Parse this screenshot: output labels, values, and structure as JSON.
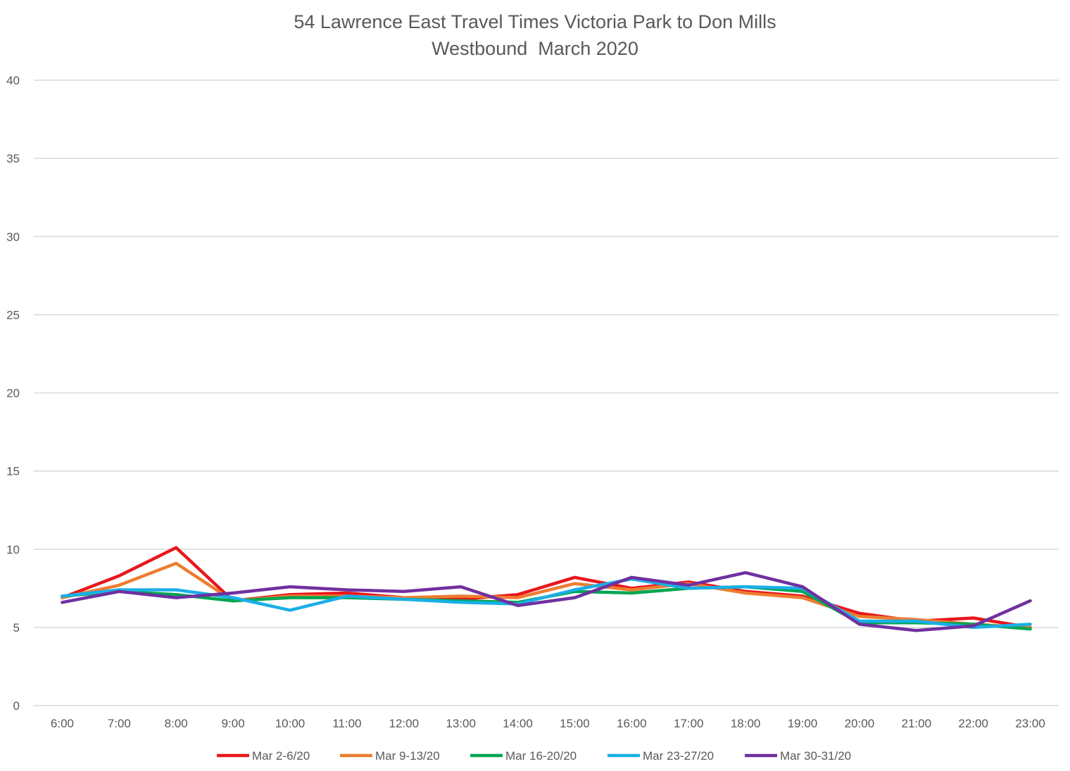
{
  "chart_data": {
    "type": "line",
    "title": [
      "54 Lawrence East Travel Times Victoria Park to Don Mills",
      "Westbound  March 2020"
    ],
    "xlabel": "",
    "ylabel": "",
    "ylim": [
      0,
      40
    ],
    "yticks": [
      0,
      5,
      10,
      15,
      20,
      25,
      30,
      35,
      40
    ],
    "grid": "horizontal",
    "legend_position": "bottom",
    "categories": [
      "6:00",
      "7:00",
      "8:00",
      "9:00",
      "10:00",
      "11:00",
      "12:00",
      "13:00",
      "14:00",
      "15:00",
      "16:00",
      "17:00",
      "18:00",
      "19:00",
      "20:00",
      "21:00",
      "22:00",
      "23:00"
    ],
    "series": [
      {
        "name": "Mar 2-6/20",
        "color": "#E8161B",
        "values": [
          6.9,
          8.3,
          10.1,
          6.7,
          7.1,
          7.2,
          6.9,
          6.8,
          7.1,
          8.2,
          7.5,
          7.9,
          7.3,
          7.0,
          5.9,
          5.4,
          5.6,
          5.0
        ]
      },
      {
        "name": "Mar 9-13/20",
        "color": "#ED7D31",
        "values": [
          6.9,
          7.7,
          9.1,
          6.7,
          7.0,
          7.0,
          6.9,
          7.0,
          6.9,
          7.8,
          7.4,
          7.8,
          7.2,
          6.9,
          5.7,
          5.5,
          5.2,
          5.0
        ]
      },
      {
        "name": "Mar 16-20/20",
        "color": "#00A651",
        "values": [
          7.0,
          7.3,
          7.1,
          6.7,
          6.9,
          6.9,
          6.8,
          6.7,
          6.6,
          7.3,
          7.2,
          7.5,
          7.6,
          7.3,
          5.3,
          5.3,
          5.2,
          4.9
        ]
      },
      {
        "name": "Mar 23-27/20",
        "color": "#1AAFE6",
        "values": [
          7.0,
          7.4,
          7.4,
          6.9,
          6.1,
          7.0,
          6.8,
          6.6,
          6.5,
          7.4,
          8.1,
          7.5,
          7.6,
          7.5,
          5.4,
          5.4,
          5.0,
          5.2
        ]
      },
      {
        "name": "Mar 30-31/20",
        "color": "#7030A0",
        "values": [
          6.6,
          7.3,
          6.9,
          7.2,
          7.6,
          7.4,
          7.3,
          7.6,
          6.4,
          6.9,
          8.2,
          7.7,
          8.5,
          7.6,
          5.2,
          4.8,
          5.1,
          6.7
        ]
      }
    ]
  }
}
